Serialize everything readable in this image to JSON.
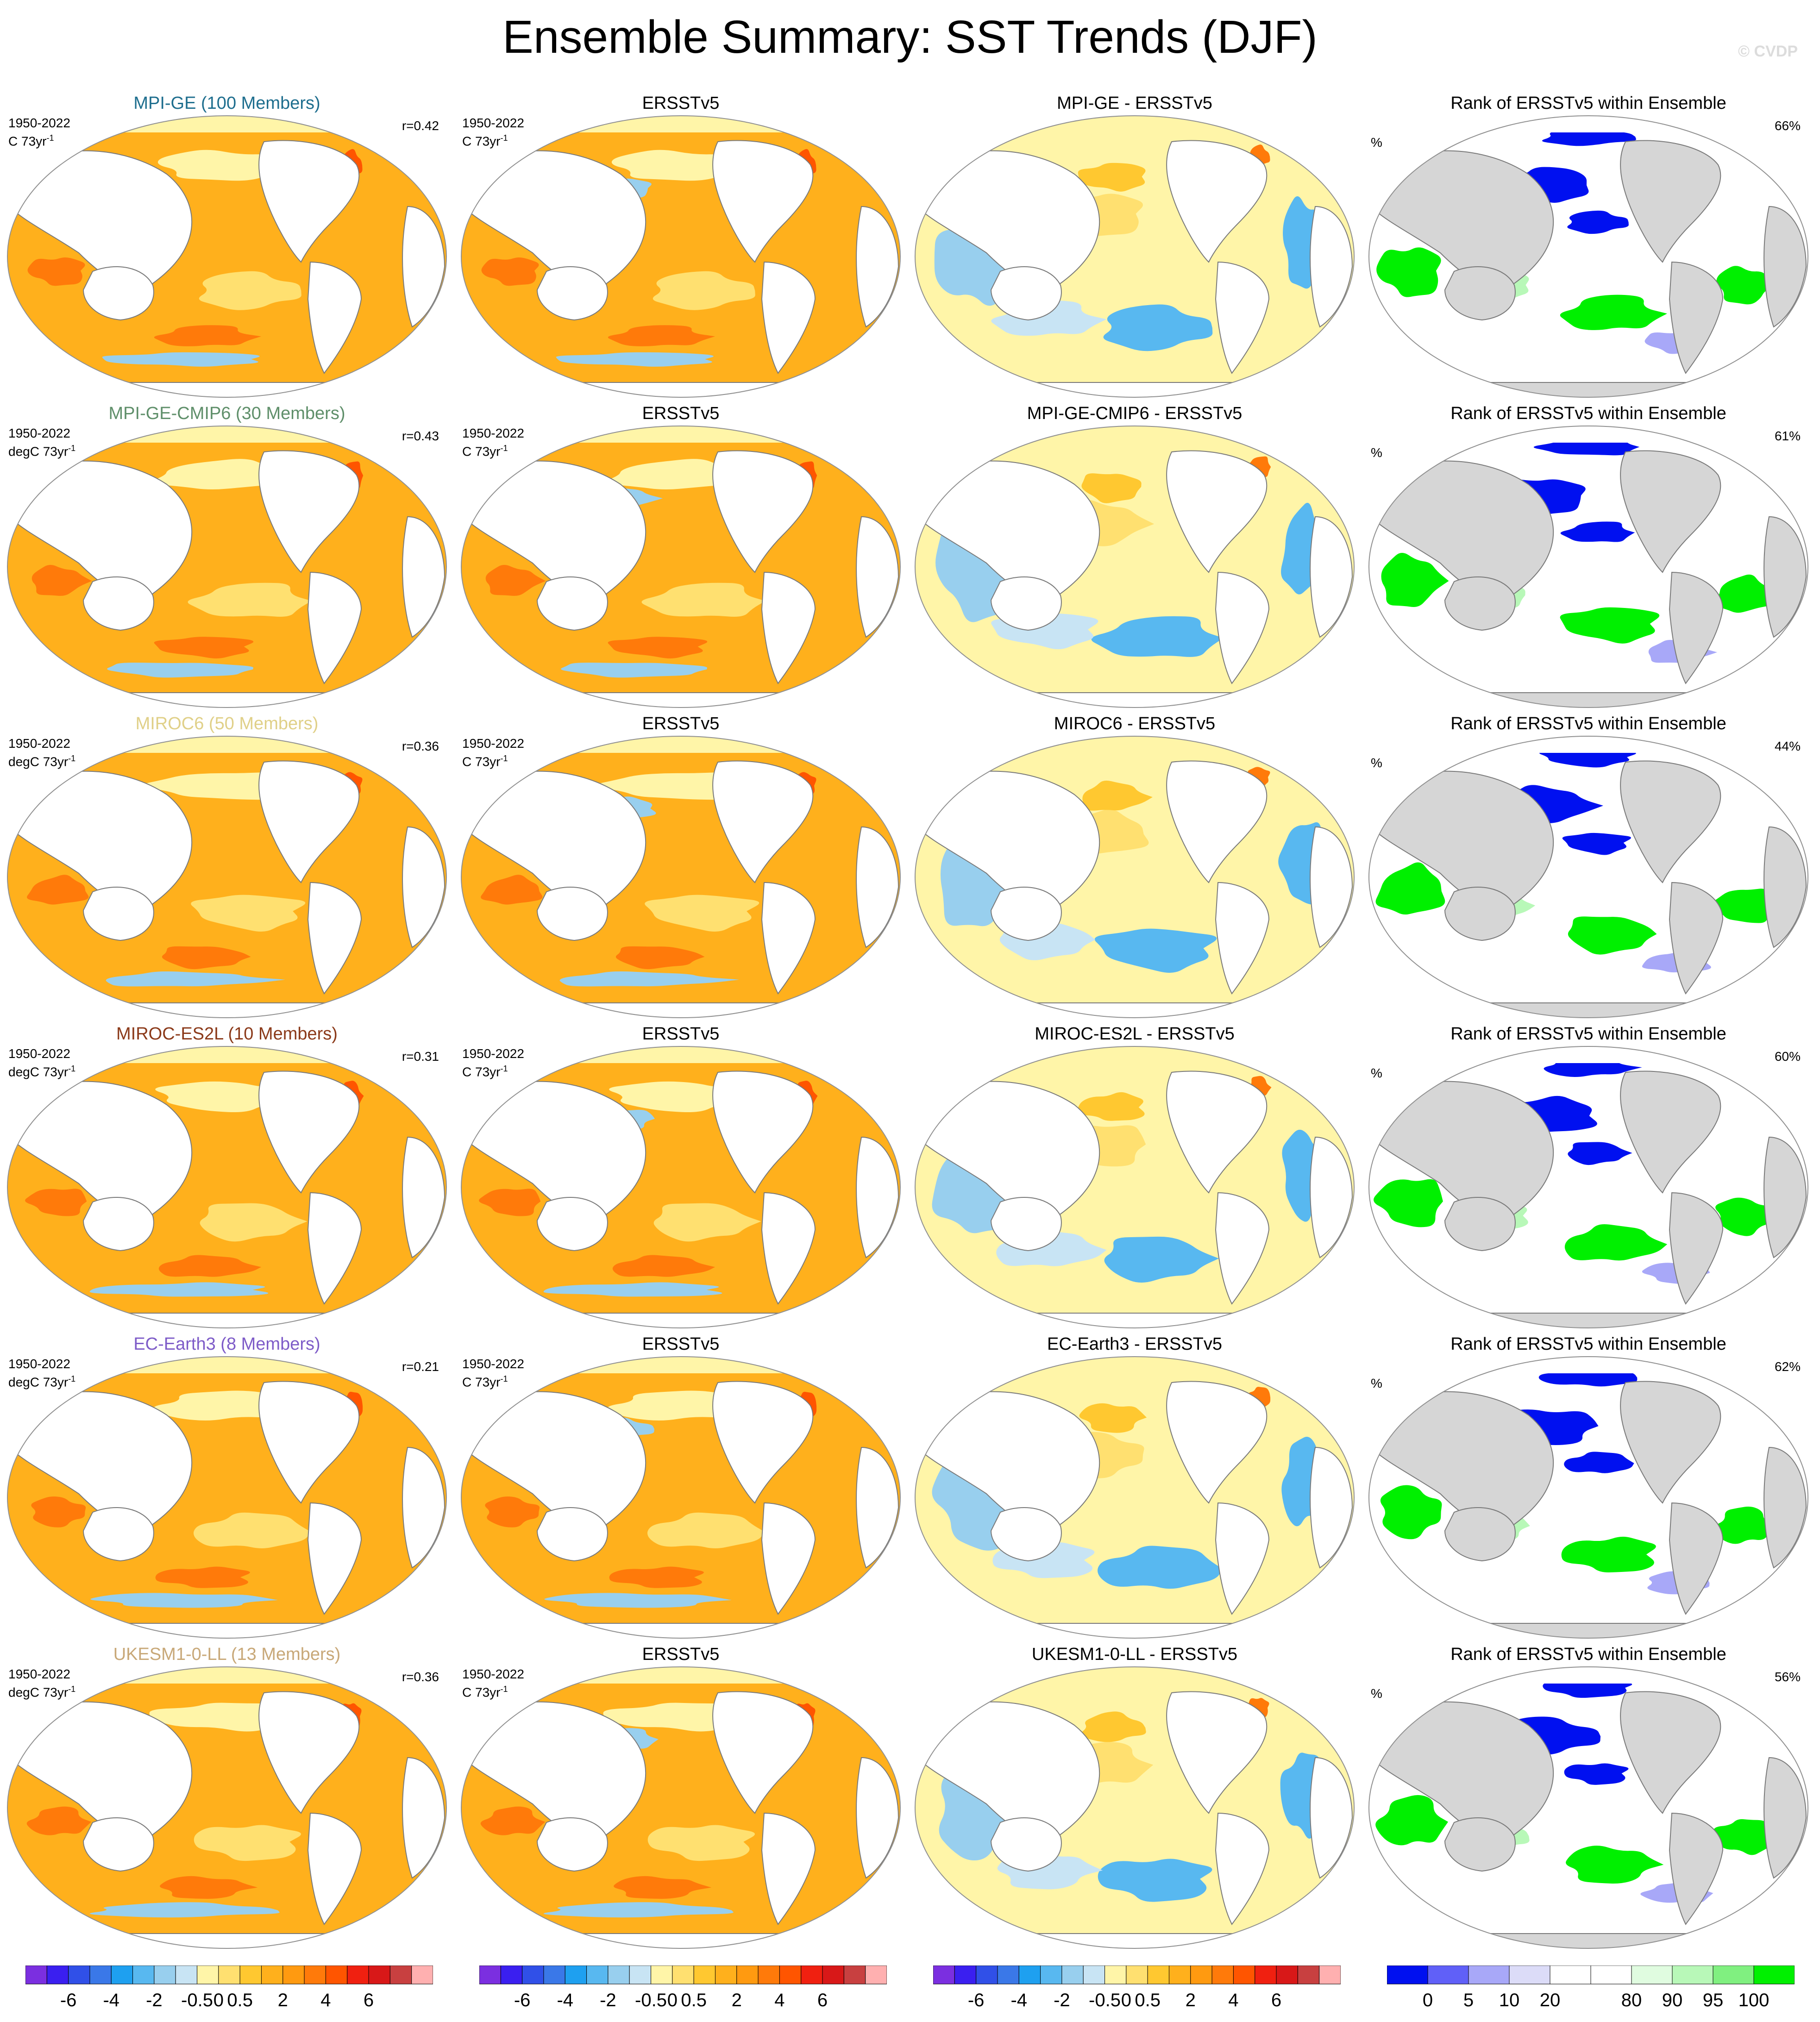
{
  "title": "Ensemble Summary: SST Trends (DJF)",
  "credit": "© CVDP",
  "common": {
    "period": "1950-2022",
    "obs_title": "ERSSTv5",
    "obs_units": "C 73yr",
    "units_exp": "-1",
    "rank_title": "Rank of ERSSTv5 within Ensemble",
    "rank_units": "%"
  },
  "rows": [
    {
      "model_title": "MPI-GE (100 Members)",
      "title_color": "#1e6e8e",
      "units": "C 73yr",
      "r": "r=0.42",
      "diff_title": "MPI-GE - ERSSTv5",
      "rank_pct": "66%",
      "pattern": 0
    },
    {
      "model_title": "MPI-GE-CMIP6 (30 Members)",
      "title_color": "#5f8f6a",
      "units": "degC 73yr",
      "r": "r=0.43",
      "diff_title": "MPI-GE-CMIP6 - ERSSTv5",
      "rank_pct": "61%",
      "pattern": 1
    },
    {
      "model_title": "MIROC6 (50 Members)",
      "title_color": "#e0d088",
      "units": "degC 73yr",
      "r": "r=0.36",
      "diff_title": "MIROC6 - ERSSTv5",
      "rank_pct": "44%",
      "pattern": 2
    },
    {
      "model_title": "MIROC-ES2L (10 Members)",
      "title_color": "#8b3a1a",
      "units": "degC 73yr",
      "r": "r=0.31",
      "diff_title": "MIROC-ES2L - ERSSTv5",
      "rank_pct": "60%",
      "pattern": 3
    },
    {
      "model_title": "EC-Earth3 (8 Members)",
      "title_color": "#7e5cc8",
      "units": "degC 73yr",
      "r": "r=0.21",
      "diff_title": "EC-Earth3 - ERSSTv5",
      "rank_pct": "62%",
      "pattern": 4
    },
    {
      "model_title": "UKESM1-0-LL (13 Members)",
      "title_color": "#c8a878",
      "units": "degC 73yr",
      "r": "r=0.36",
      "diff_title": "UKESM1-0-LL - ERSSTv5",
      "rank_pct": "56%",
      "pattern": 5
    }
  ],
  "colorbars": {
    "trend": {
      "colors": [
        "#7b2fe0",
        "#3a1ff0",
        "#3050e8",
        "#3a78e8",
        "#1ea0f0",
        "#58b8f0",
        "#98cfee",
        "#c8e4f4",
        "#fff5a8",
        "#ffe070",
        "#ffc830",
        "#ffb01c",
        "#ff9a10",
        "#ff7a0a",
        "#ff5500",
        "#f02010",
        "#d81818",
        "#c84040",
        "#ffb0b0"
      ],
      "labels": [
        "-6",
        "-4",
        "-2",
        "-0.5",
        "0",
        "0.5",
        "2",
        "4",
        "6"
      ],
      "label_after_box": [
        1,
        3,
        5,
        7,
        8,
        9,
        11,
        13,
        15
      ]
    },
    "rank": {
      "colors": [
        "#0010f0",
        "#6060f8",
        "#a8a8f8",
        "#dcdcf8",
        "#ffffff",
        "#ffffff",
        "#e0fce0",
        "#b8f8b8",
        "#80f080",
        "#00f000"
      ],
      "labels": [
        "0",
        "5",
        "10",
        "20",
        "80",
        "90",
        "95",
        "100"
      ],
      "label_after_box": [
        0,
        1,
        2,
        3,
        5,
        6,
        7,
        8
      ]
    }
  }
}
